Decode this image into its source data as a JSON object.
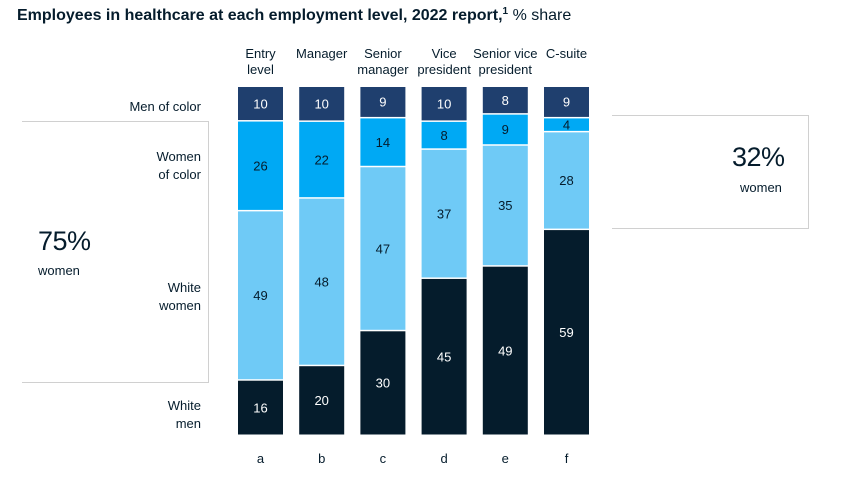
{
  "title": {
    "main": "Employees in healthcare at each employment level, 2022 report,",
    "footnote": "1",
    "unit": "% share"
  },
  "row_labels": [
    "Men of color",
    "Women\nof color",
    "White\nwomen",
    "White\nmen"
  ],
  "callouts": {
    "left": {
      "pct": "75%",
      "label": "women"
    },
    "right": {
      "pct": "32%",
      "label": "women"
    }
  },
  "colors": {
    "men_of_color": "#1f3f6e",
    "women_of_color": "#00a9f4",
    "white_women": "#6fcaf6",
    "white_men": "#051c2c"
  },
  "chart_data": {
    "type": "bar",
    "stacked": true,
    "categories": [
      "Entry\nlevel",
      "Manager",
      "Senior\nmanager",
      "Vice\npresident",
      "Senior vice\npresident",
      "C-suite"
    ],
    "category_letters": [
      "a",
      "b",
      "c",
      "d",
      "e",
      "f"
    ],
    "series": [
      {
        "name": "Men of color",
        "values": [
          10,
          10,
          9,
          10,
          8,
          9
        ]
      },
      {
        "name": "Women of color",
        "values": [
          26,
          22,
          14,
          8,
          9,
          4
        ]
      },
      {
        "name": "White women",
        "values": [
          49,
          48,
          47,
          37,
          35,
          28
        ]
      },
      {
        "name": "White men",
        "values": [
          16,
          20,
          30,
          45,
          49,
          59
        ]
      }
    ],
    "title": "Employees in healthcare at each employment level, 2022 report",
    "ylim": [
      0,
      100
    ],
    "grid": false,
    "legend": "row labels on left"
  }
}
